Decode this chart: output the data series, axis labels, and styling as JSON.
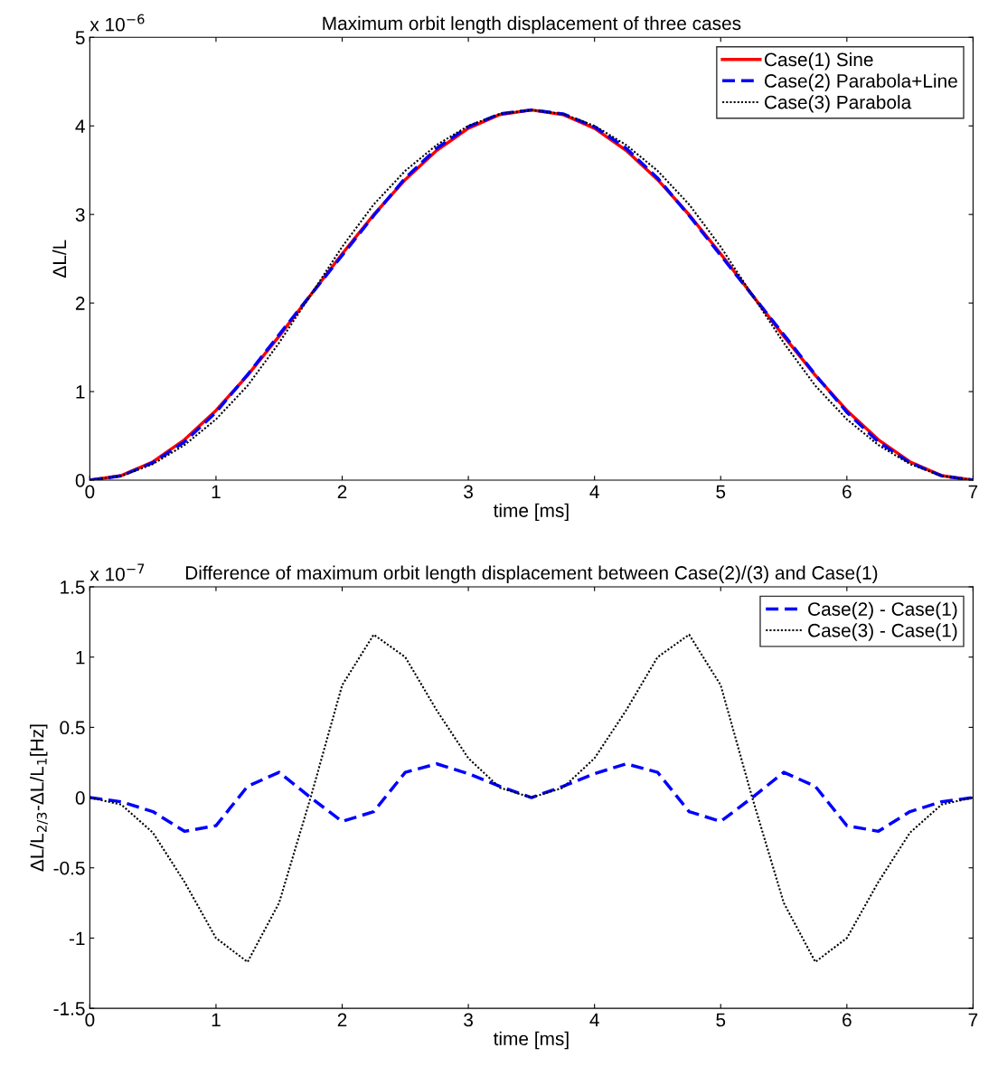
{
  "chart_data": [
    {
      "type": "line",
      "title": "Maximum orbit length displacement of three cases",
      "xlabel": "time [ms]",
      "ylabel": "ΔL/L",
      "annotations": [
        "x 10$^{−6}$"
      ],
      "x": [
        0,
        0.25,
        0.5,
        0.75,
        1,
        1.25,
        1.5,
        1.75,
        2,
        2.25,
        2.5,
        2.75,
        3,
        3.25,
        3.5,
        3.75,
        4,
        4.25,
        4.5,
        4.75,
        5,
        5.25,
        5.5,
        5.75,
        6,
        6.25,
        6.5,
        6.75,
        7
      ],
      "series": [
        {
          "name": "Case(1) Sine",
          "color": "#ff0000",
          "line_style": "solid",
          "values": [
            0,
            0.052,
            0.207,
            0.456,
            0.787,
            1.183,
            1.625,
            2.09,
            2.555,
            2.997,
            3.393,
            3.724,
            3.973,
            4.128,
            4.18,
            4.128,
            3.973,
            3.724,
            3.393,
            2.997,
            2.555,
            2.09,
            1.625,
            1.183,
            0.787,
            0.456,
            0.207,
            0.052,
            0
          ]
        },
        {
          "name": "Case(2) Parabola+Line",
          "color": "#0000ff",
          "line_style": "dashed",
          "values": [
            0,
            0.049,
            0.197,
            0.432,
            0.767,
            1.191,
            1.643,
            2.09,
            2.538,
            2.987,
            3.411,
            3.748,
            3.99,
            4.136,
            4.18,
            4.136,
            3.99,
            3.748,
            3.411,
            2.987,
            2.538,
            2.09,
            1.643,
            1.191,
            0.767,
            0.432,
            0.197,
            0.049,
            0
          ]
        },
        {
          "name": "Case(3) Parabola",
          "color": "#000000",
          "line_style": "dotted",
          "values": [
            0,
            0.047,
            0.182,
            0.396,
            0.687,
            1.066,
            1.55,
            2.09,
            2.635,
            3.113,
            3.493,
            3.786,
            4.001,
            4.135,
            4.18,
            4.135,
            4.001,
            3.786,
            3.493,
            3.113,
            2.635,
            2.09,
            1.55,
            1.066,
            0.687,
            0.396,
            0.182,
            0.047,
            0
          ]
        }
      ],
      "xlim": [
        0,
        7
      ],
      "xticks": [
        0,
        1,
        2,
        3,
        4,
        5,
        6,
        7
      ],
      "ylim": [
        0,
        5
      ],
      "yticks": [
        0,
        1,
        2,
        3,
        4,
        5
      ],
      "grid": false,
      "legend": "top right"
    },
    {
      "type": "line",
      "title": "Difference of maximum orbit length displacement between Case(2)/(3) and Case(1)",
      "xlabel": "time [ms]",
      "ylabel": "ΔL/L$_{2/3}$-ΔL/L$_{1}$[Hz]",
      "annotations": [
        "x 10$^{−7}$"
      ],
      "x": [
        0,
        0.25,
        0.5,
        0.75,
        1,
        1.25,
        1.5,
        1.75,
        2,
        2.25,
        2.5,
        2.75,
        3,
        3.25,
        3.5,
        3.75,
        4,
        4.25,
        4.5,
        4.75,
        5,
        5.25,
        5.5,
        5.75,
        6,
        6.25,
        6.5,
        6.75,
        7
      ],
      "series": [
        {
          "name": "Case(2) - Case(1)",
          "color": "#0000ff",
          "line_style": "dashed",
          "values": [
            0,
            -0.03,
            -0.1,
            -0.24,
            -0.2,
            0.08,
            0.18,
            0,
            -0.17,
            -0.1,
            0.18,
            0.24,
            0.17,
            0.08,
            0,
            0.08,
            0.17,
            0.24,
            0.18,
            -0.1,
            -0.17,
            0,
            0.18,
            0.08,
            -0.2,
            -0.24,
            -0.1,
            -0.03,
            0
          ]
        },
        {
          "name": "Case(3) - Case(1)",
          "color": "#000000",
          "line_style": "dotted",
          "values": [
            0,
            -0.05,
            -0.25,
            -0.6,
            -1.0,
            -1.17,
            -0.75,
            0,
            0.8,
            1.16,
            1.0,
            0.62,
            0.28,
            0.07,
            0,
            0.07,
            0.28,
            0.62,
            1.0,
            1.16,
            0.8,
            0,
            -0.75,
            -1.17,
            -1.0,
            -0.6,
            -0.25,
            -0.05,
            0
          ]
        }
      ],
      "xlim": [
        0,
        7
      ],
      "xticks": [
        0,
        1,
        2,
        3,
        4,
        5,
        6,
        7
      ],
      "ylim": [
        -1.5,
        1.5
      ],
      "yticks": [
        -1.5,
        -1,
        -0.5,
        0,
        0.5,
        1,
        1.5
      ],
      "grid": false,
      "legend": "top right"
    }
  ]
}
